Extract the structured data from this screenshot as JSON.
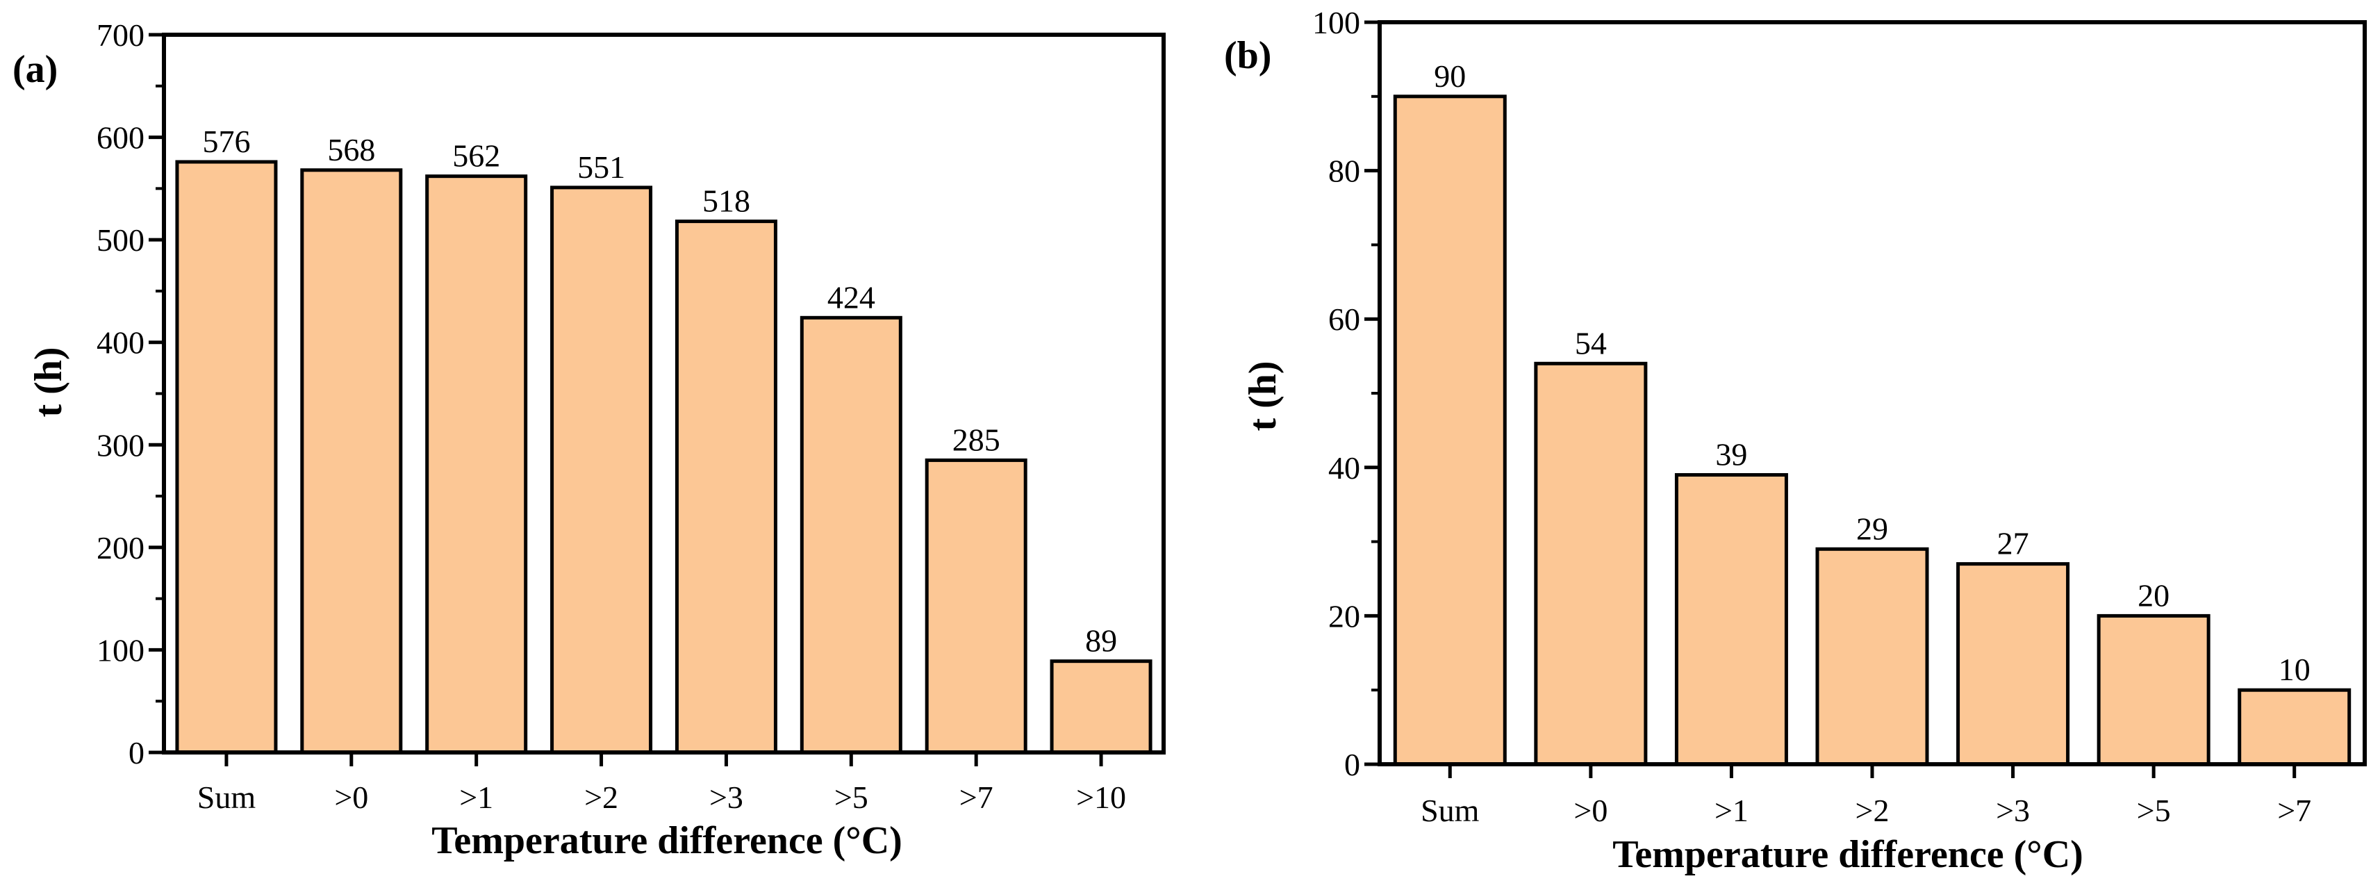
{
  "colors": {
    "bar_fill": "#FCC795",
    "bar_stroke": "#000000",
    "axis": "#000000",
    "background": "#FFFFFF"
  },
  "chart_data": [
    {
      "panel_label": "(a)",
      "type": "bar",
      "categories": [
        "Sum",
        ">0",
        ">1",
        ">2",
        ">3",
        ">5",
        ">7",
        ">10"
      ],
      "values": [
        576,
        568,
        562,
        551,
        518,
        424,
        285,
        89
      ],
      "value_labels": [
        "576",
        "568",
        "562",
        "551",
        "518",
        "424",
        "285",
        "89"
      ],
      "xlabel": "Temperature difference (°C)",
      "ylabel": "t (h)",
      "ylim": [
        0,
        700
      ],
      "yticks": [
        0,
        100,
        200,
        300,
        400,
        500,
        600,
        700
      ],
      "ytick_labels": [
        "0",
        "100",
        "200",
        "300",
        "400",
        "500",
        "600",
        "700"
      ],
      "grid": false
    },
    {
      "panel_label": "(b)",
      "type": "bar",
      "categories": [
        "Sum",
        ">0",
        ">1",
        ">2",
        ">3",
        ">5",
        ">7"
      ],
      "values": [
        90,
        54,
        39,
        29,
        27,
        20,
        10
      ],
      "value_labels": [
        "90",
        "54",
        "39",
        "29",
        "27",
        "20",
        "10"
      ],
      "xlabel": "Temperature difference (°C)",
      "ylabel": "t (h)",
      "ylim": [
        0,
        100
      ],
      "yticks": [
        0,
        20,
        40,
        60,
        80,
        100
      ],
      "ytick_labels": [
        "0",
        "20",
        "40",
        "60",
        "80",
        "100"
      ],
      "grid": false
    }
  ]
}
